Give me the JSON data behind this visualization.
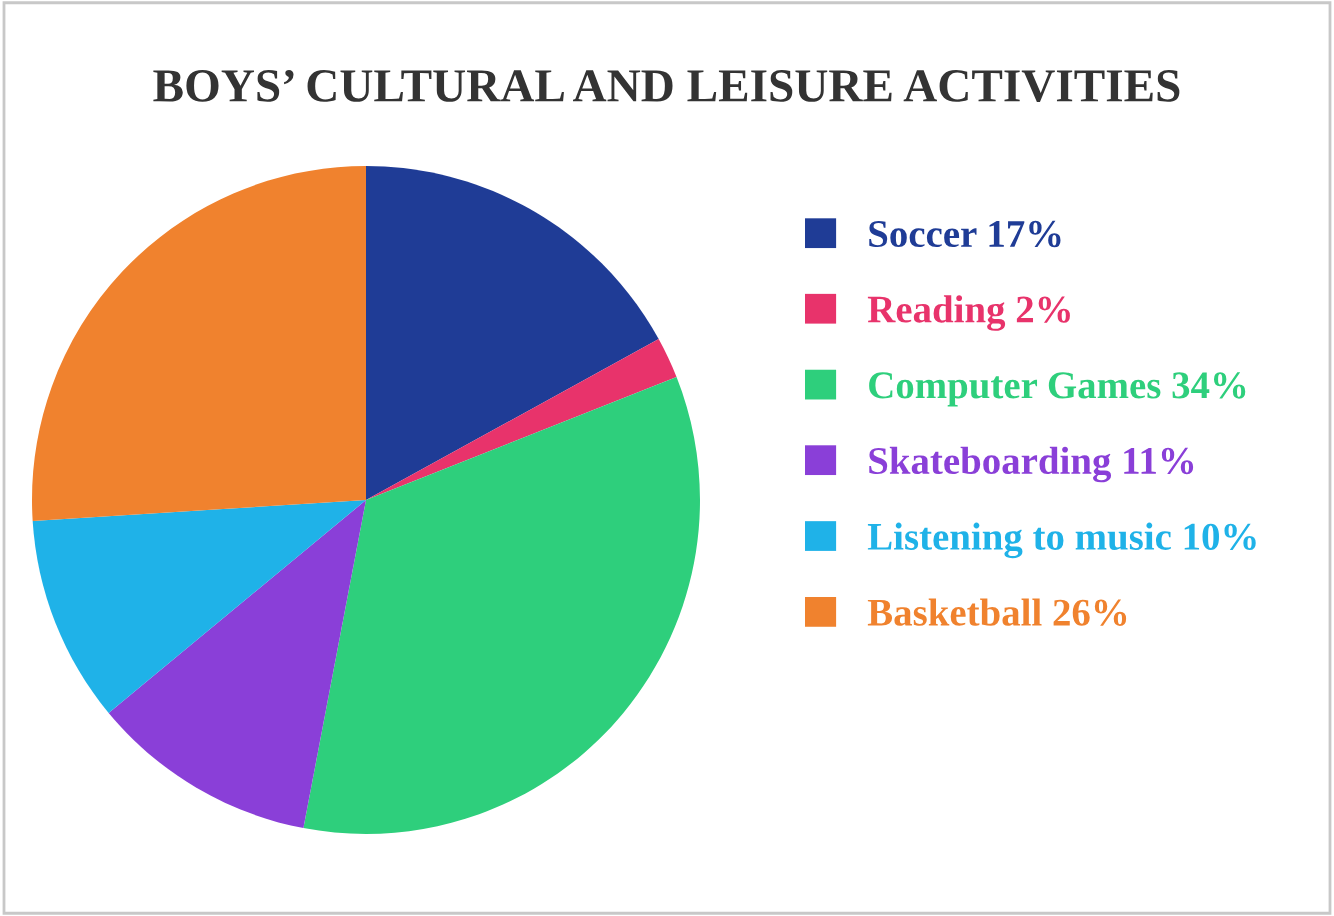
{
  "chart_data": {
    "type": "pie",
    "title": "BOYS’ CULTURAL AND LEISURE ACTIVITIES",
    "categories": [
      "Soccer",
      "Reading",
      "Computer Games",
      "Skateboarding",
      "Listening to music",
      "Basketball"
    ],
    "values": [
      17,
      2,
      34,
      11,
      10,
      26
    ],
    "value_labels": [
      "17%",
      "2%",
      "34%",
      "11%",
      "10%",
      "26%"
    ],
    "colors": [
      "#1f3c96",
      "#e8336b",
      "#2ecf7c",
      "#8a3fd8",
      "#1fb2e8",
      "#f0822e"
    ],
    "legend": "right"
  }
}
